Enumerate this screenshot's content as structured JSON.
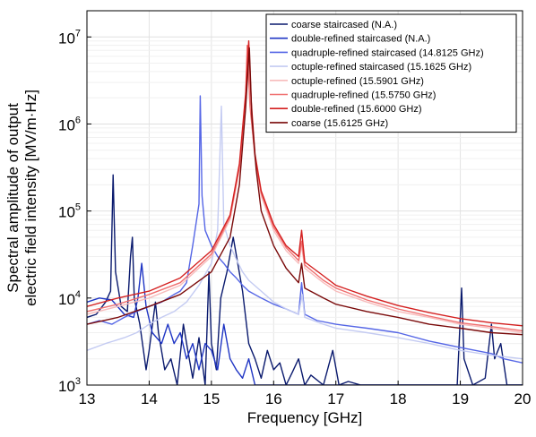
{
  "chart_data": {
    "type": "line",
    "xlabel": "Frequency [GHz]",
    "ylabel_lines": [
      "Spectral amplitude of output",
      "electric field intensity [MV/m·Hz]"
    ],
    "xlim": [
      13,
      20
    ],
    "ylim": [
      1000,
      20000000
    ],
    "yscale": "log",
    "grid": true,
    "legend_position": "top-right",
    "x_ticks": [
      "13",
      "14",
      "15",
      "16",
      "17",
      "18",
      "19",
      "20"
    ],
    "y_ticks": [
      {
        "value": 1000,
        "base": "10",
        "exp": "3"
      },
      {
        "value": 10000,
        "base": "10",
        "exp": "4"
      },
      {
        "value": 100000,
        "base": "10",
        "exp": "5"
      },
      {
        "value": 1000000,
        "base": "10",
        "exp": "6"
      },
      {
        "value": 10000000,
        "base": "10",
        "exp": "7"
      }
    ],
    "series": [
      {
        "name": "coarse staircased (N.A.)",
        "color": "#0a1a6e",
        "points": [
          [
            13,
            6000
          ],
          [
            13.15,
            6500
          ],
          [
            13.3,
            9000
          ],
          [
            13.38,
            12000
          ],
          [
            13.42,
            260000
          ],
          [
            13.46,
            20000
          ],
          [
            13.55,
            8000
          ],
          [
            13.65,
            7000
          ],
          [
            13.7,
            30000
          ],
          [
            13.73,
            50000
          ],
          [
            13.76,
            10000
          ],
          [
            13.85,
            5000
          ],
          [
            13.95,
            1500
          ],
          [
            14.0,
            2500
          ],
          [
            14.1,
            9000
          ],
          [
            14.15,
            4000
          ],
          [
            14.25,
            1500
          ],
          [
            14.35,
            2000
          ],
          [
            14.45,
            1000
          ],
          [
            14.55,
            5000
          ],
          [
            14.62,
            2500
          ],
          [
            14.7,
            1200
          ],
          [
            14.8,
            3500
          ],
          [
            14.9,
            1000
          ],
          [
            14.96,
            20000
          ],
          [
            15.0,
            3000
          ],
          [
            15.08,
            1500
          ],
          [
            15.15,
            10000
          ],
          [
            15.25,
            20000
          ],
          [
            15.35,
            50000
          ],
          [
            15.5,
            12000
          ],
          [
            15.6,
            3000
          ],
          [
            15.7,
            2000
          ],
          [
            15.8,
            1200
          ],
          [
            15.9,
            2500
          ],
          [
            16.0,
            1500
          ],
          [
            16.1,
            1800
          ],
          [
            16.2,
            1000
          ],
          [
            16.3,
            1400
          ],
          [
            16.4,
            2000
          ],
          [
            16.5,
            1000
          ],
          [
            16.6,
            1300
          ],
          [
            16.8,
            1000
          ],
          [
            16.95,
            2500
          ],
          [
            17.05,
            1000
          ],
          [
            17.2,
            1100
          ],
          [
            17.4,
            1000
          ],
          [
            18.0,
            1000
          ],
          [
            18.95,
            1000
          ],
          [
            18.98,
            3000
          ],
          [
            19.02,
            13000
          ],
          [
            19.06,
            2000
          ],
          [
            19.2,
            1000
          ],
          [
            19.4,
            1200
          ],
          [
            19.5,
            5000
          ],
          [
            19.55,
            2000
          ],
          [
            19.65,
            3000
          ],
          [
            19.75,
            1000
          ],
          [
            19.9,
            1000
          ],
          [
            20,
            1000
          ]
        ]
      },
      {
        "name": "double-refined staircased (N.A.)",
        "color": "#1f35c4",
        "points": [
          [
            13,
            9000
          ],
          [
            13.2,
            10000
          ],
          [
            13.4,
            9500
          ],
          [
            13.6,
            6500
          ],
          [
            13.75,
            6000
          ],
          [
            13.82,
            10000
          ],
          [
            13.88,
            25000
          ],
          [
            13.95,
            8000
          ],
          [
            14.05,
            4000
          ],
          [
            14.2,
            3000
          ],
          [
            14.3,
            5000
          ],
          [
            14.4,
            3000
          ],
          [
            14.5,
            4000
          ],
          [
            14.6,
            2000
          ],
          [
            14.7,
            3000
          ],
          [
            14.8,
            1500
          ],
          [
            14.9,
            3000
          ],
          [
            15.0,
            2500
          ],
          [
            15.1,
            1500
          ],
          [
            15.2,
            5000
          ],
          [
            15.3,
            2000
          ],
          [
            15.4,
            1500
          ],
          [
            15.5,
            1200
          ],
          [
            15.6,
            2000
          ],
          [
            15.7,
            1000
          ],
          [
            15.9,
            1000
          ],
          [
            16.5,
            1000
          ],
          [
            17.0,
            1000
          ],
          [
            18.0,
            1000
          ],
          [
            19.0,
            1000
          ],
          [
            19.5,
            1000
          ],
          [
            20,
            1000
          ]
        ]
      },
      {
        "name": "quadruple-refined staircased (14.8125 GHz)",
        "color": "#5566e6",
        "points": [
          [
            13,
            5000
          ],
          [
            13.2,
            5500
          ],
          [
            13.4,
            5000
          ],
          [
            13.6,
            6000
          ],
          [
            13.8,
            7000
          ],
          [
            14.0,
            8000
          ],
          [
            14.2,
            9000
          ],
          [
            14.4,
            11000
          ],
          [
            14.5,
            12000
          ],
          [
            14.6,
            15000
          ],
          [
            14.7,
            40000
          ],
          [
            14.8,
            120000
          ],
          [
            14.82,
            2100000
          ],
          [
            14.85,
            150000
          ],
          [
            14.9,
            60000
          ],
          [
            15.0,
            40000
          ],
          [
            15.1,
            30000
          ],
          [
            15.2,
            25000
          ],
          [
            15.3,
            20000
          ],
          [
            15.4,
            17000
          ],
          [
            15.5,
            14000
          ],
          [
            15.6,
            12000
          ],
          [
            15.8,
            10000
          ],
          [
            16.0,
            8500
          ],
          [
            16.2,
            7500
          ],
          [
            16.4,
            6500
          ],
          [
            16.45,
            15000
          ],
          [
            16.5,
            6500
          ],
          [
            16.7,
            5500
          ],
          [
            17.0,
            5000
          ],
          [
            17.5,
            4500
          ],
          [
            18.0,
            4000
          ],
          [
            18.5,
            3200
          ],
          [
            19.0,
            2700
          ],
          [
            19.5,
            2300
          ],
          [
            19.7,
            2000
          ],
          [
            20,
            1800
          ]
        ]
      },
      {
        "name": "octuple-refined staircased (15.1625 GHz)",
        "color": "#c4cbf2",
        "points": [
          [
            13,
            2500
          ],
          [
            13.3,
            3000
          ],
          [
            13.6,
            3500
          ],
          [
            13.8,
            4000
          ],
          [
            14.0,
            5000
          ],
          [
            14.2,
            6000
          ],
          [
            14.4,
            7000
          ],
          [
            14.6,
            9000
          ],
          [
            14.8,
            14000
          ],
          [
            15.0,
            25000
          ],
          [
            15.1,
            60000
          ],
          [
            15.16,
            1600000
          ],
          [
            15.2,
            70000
          ],
          [
            15.3,
            40000
          ],
          [
            15.4,
            28000
          ],
          [
            15.5,
            20000
          ],
          [
            15.6,
            16000
          ],
          [
            15.8,
            12000
          ],
          [
            16.0,
            9000
          ],
          [
            16.2,
            7500
          ],
          [
            16.4,
            6500
          ],
          [
            16.46,
            11000
          ],
          [
            16.5,
            6000
          ],
          [
            16.8,
            5000
          ],
          [
            17.0,
            4500
          ],
          [
            17.5,
            4000
          ],
          [
            18.0,
            3500
          ],
          [
            18.5,
            3000
          ],
          [
            19.0,
            2500
          ],
          [
            19.5,
            2200
          ],
          [
            20,
            2000
          ]
        ]
      },
      {
        "name": "octuple-refined (15.5901 GHz)",
        "color": "#f7bcbc",
        "points": [
          [
            13,
            6500
          ],
          [
            13.5,
            8000
          ],
          [
            14.0,
            10000
          ],
          [
            14.5,
            14000
          ],
          [
            15.0,
            30000
          ],
          [
            15.3,
            80000
          ],
          [
            15.45,
            300000
          ],
          [
            15.55,
            1800000
          ],
          [
            15.59,
            7000000
          ],
          [
            15.63,
            1500000
          ],
          [
            15.7,
            400000
          ],
          [
            15.8,
            150000
          ],
          [
            16.0,
            60000
          ],
          [
            16.2,
            35000
          ],
          [
            16.4,
            25000
          ],
          [
            16.45,
            40000
          ],
          [
            16.5,
            22000
          ],
          [
            16.8,
            15000
          ],
          [
            17.0,
            12000
          ],
          [
            17.5,
            9000
          ],
          [
            18.0,
            7000
          ],
          [
            18.5,
            6000
          ],
          [
            19.0,
            5000
          ],
          [
            19.5,
            4500
          ],
          [
            20,
            4000
          ]
        ]
      },
      {
        "name": "quadruple-refined (15.5750 GHz)",
        "color": "#f07070",
        "points": [
          [
            13,
            7000
          ],
          [
            13.5,
            8500
          ],
          [
            14.0,
            11000
          ],
          [
            14.5,
            15000
          ],
          [
            15.0,
            32000
          ],
          [
            15.3,
            85000
          ],
          [
            15.45,
            320000
          ],
          [
            15.55,
            2000000
          ],
          [
            15.575,
            8000000
          ],
          [
            15.62,
            1600000
          ],
          [
            15.7,
            420000
          ],
          [
            15.8,
            160000
          ],
          [
            16.0,
            65000
          ],
          [
            16.2,
            38000
          ],
          [
            16.4,
            27000
          ],
          [
            16.45,
            45000
          ],
          [
            16.5,
            24000
          ],
          [
            16.8,
            16000
          ],
          [
            17.0,
            13000
          ],
          [
            17.5,
            9500
          ],
          [
            18.0,
            7500
          ],
          [
            18.5,
            6200
          ],
          [
            19.0,
            5200
          ],
          [
            19.5,
            4700
          ],
          [
            20,
            4200
          ]
        ]
      },
      {
        "name": "double-refined (15.6000 GHz)",
        "color": "#d42020",
        "points": [
          [
            13,
            8000
          ],
          [
            13.5,
            10000
          ],
          [
            14.0,
            12000
          ],
          [
            14.5,
            17000
          ],
          [
            15.0,
            35000
          ],
          [
            15.3,
            90000
          ],
          [
            15.45,
            350000
          ],
          [
            15.55,
            2200000
          ],
          [
            15.6,
            9000000
          ],
          [
            15.64,
            1800000
          ],
          [
            15.7,
            450000
          ],
          [
            15.8,
            170000
          ],
          [
            16.0,
            70000
          ],
          [
            16.2,
            40000
          ],
          [
            16.4,
            30000
          ],
          [
            16.45,
            60000
          ],
          [
            16.5,
            26000
          ],
          [
            16.8,
            18000
          ],
          [
            17.0,
            14000
          ],
          [
            17.5,
            10500
          ],
          [
            18.0,
            8200
          ],
          [
            18.5,
            6800
          ],
          [
            19.0,
            5800
          ],
          [
            19.5,
            5200
          ],
          [
            20,
            4800
          ]
        ]
      },
      {
        "name": "coarse (15.6125 GHz)",
        "color": "#7a0a0a",
        "points": [
          [
            13,
            5000
          ],
          [
            13.5,
            6000
          ],
          [
            14.0,
            8000
          ],
          [
            14.5,
            11000
          ],
          [
            15.0,
            20000
          ],
          [
            15.3,
            50000
          ],
          [
            15.45,
            200000
          ],
          [
            15.55,
            1500000
          ],
          [
            15.61,
            7500000
          ],
          [
            15.65,
            1200000
          ],
          [
            15.72,
            300000
          ],
          [
            15.8,
            100000
          ],
          [
            16.0,
            40000
          ],
          [
            16.2,
            22000
          ],
          [
            16.4,
            15000
          ],
          [
            16.45,
            25000
          ],
          [
            16.5,
            13000
          ],
          [
            16.8,
            10000
          ],
          [
            17.0,
            8500
          ],
          [
            17.5,
            7000
          ],
          [
            18.0,
            6000
          ],
          [
            18.5,
            5000
          ],
          [
            19.0,
            4500
          ],
          [
            19.5,
            4000
          ],
          [
            20,
            3800
          ]
        ]
      }
    ]
  }
}
